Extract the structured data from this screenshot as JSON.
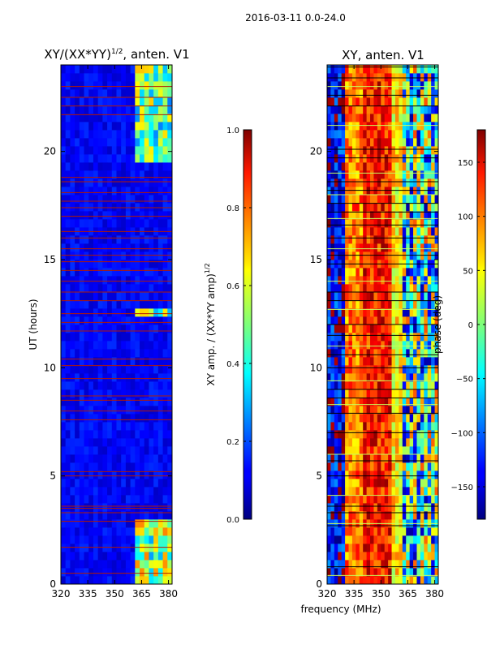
{
  "figure": {
    "suptitle": "2016-03-11 0.0-24.0",
    "shared_xlabel": "frequency (MHz)"
  },
  "chart_data": [
    {
      "type": "heatmap",
      "title": "XY/(XX*YY)",
      "title_exponent": "1/2",
      "title_suffix": ", anten. V1",
      "xlabel": "frequency (MHz)",
      "ylabel": "UT (hours)",
      "xlim": [
        320,
        382
      ],
      "ylim": [
        0,
        24
      ],
      "xticks": [
        320,
        335,
        350,
        365,
        380
      ],
      "yticks": [
        0,
        5,
        10,
        15,
        20
      ],
      "xtick_labels": [
        "320",
        "335",
        "350",
        "365",
        "380"
      ],
      "ytick_labels": [
        "0",
        "5",
        "10",
        "15",
        "20"
      ],
      "colormap": "jet",
      "colorbar": {
        "label": "XY amp. / (XX*YY amp)",
        "label_exponent": "1/2",
        "vmin": 0.0,
        "vmax": 1.0,
        "ticks": [
          0.0,
          0.2,
          0.4,
          0.6,
          0.8,
          1.0
        ],
        "tick_labels": [
          "0.0",
          "0.2",
          "0.4",
          "0.6",
          "0.8",
          "1.0"
        ]
      },
      "flagged_times_ut": [
        0.5,
        1.7,
        2.9,
        3.3,
        3.5,
        3.6,
        5.0,
        5.2,
        7.6,
        8.0,
        8.5,
        8.7,
        9.5,
        10.1,
        10.4,
        11.7,
        12.1,
        12.5,
        13.1,
        13.5,
        14.0,
        14.5,
        14.9,
        15.2,
        15.5,
        16.0,
        16.3,
        17.0,
        17.4,
        17.7,
        18.1,
        18.6,
        18.8,
        21.7,
        22.1,
        22.5,
        23.0
      ],
      "high_amplitude_regions": [
        {
          "freq_mhz": [
            361,
            381
          ],
          "ut_hours": [
            0.0,
            3.0
          ],
          "value": 0.6
        },
        {
          "freq_mhz": [
            361,
            381
          ],
          "ut_hours": [
            19.5,
            24.0
          ],
          "value": 0.55
        },
        {
          "freq_mhz": [
            361,
            381
          ],
          "ut_hours": [
            12.5,
            12.7
          ],
          "value": 0.6
        },
        {
          "freq_mhz": [
            361,
            367
          ],
          "ut_hours": [
            5.9,
            6.1
          ],
          "value": 0.5
        }
      ]
    },
    {
      "type": "heatmap",
      "title": "XY, anten. V1",
      "xlabel": "frequency (MHz)",
      "ylabel": "",
      "xlim": [
        320,
        382
      ],
      "ylim": [
        0,
        24
      ],
      "xticks": [
        320,
        335,
        350,
        365,
        380
      ],
      "yticks": [
        0,
        5,
        10,
        15,
        20
      ],
      "xtick_labels": [
        "320",
        "335",
        "350",
        "365",
        "380"
      ],
      "ytick_labels": [
        "0",
        "5",
        "10",
        "15",
        "20"
      ],
      "colormap": "jet",
      "colorbar": {
        "label": "phase (deg)",
        "vmin": -180,
        "vmax": 180,
        "ticks": [
          -150,
          -100,
          -50,
          0,
          50,
          100,
          150
        ],
        "tick_labels": [
          "−150",
          "−100",
          "−50",
          "0",
          "50",
          "100",
          "150"
        ]
      },
      "phase_by_frequency_band": [
        {
          "freq_mhz": [
            320,
            330
          ],
          "phase_deg": -140
        },
        {
          "freq_mhz": [
            330,
            340
          ],
          "phase_deg": 90
        },
        {
          "freq_mhz": [
            340,
            356
          ],
          "phase_deg": 130
        },
        {
          "freq_mhz": [
            356,
            363
          ],
          "phase_deg": 50
        },
        {
          "freq_mhz": [
            363,
            382
          ],
          "phase_deg": -30
        }
      ],
      "flagged_times_ut": [
        0.4,
        0.8,
        2.7,
        2.8,
        3.3,
        3.6,
        4.1,
        5.0,
        5.7,
        6.0,
        7.0,
        7.9,
        8.3,
        8.6,
        9.0,
        9.4,
        10.0,
        10.6,
        11.0,
        11.5,
        12.0,
        12.7,
        13.1,
        13.5,
        14.0,
        14.8,
        15.2,
        15.5,
        16.0,
        16.6,
        16.9,
        17.2,
        17.6,
        18.0,
        18.2,
        18.6,
        19.0,
        19.7,
        20.1,
        21.2,
        22.1,
        22.6,
        23.0,
        23.4,
        23.9
      ]
    }
  ]
}
